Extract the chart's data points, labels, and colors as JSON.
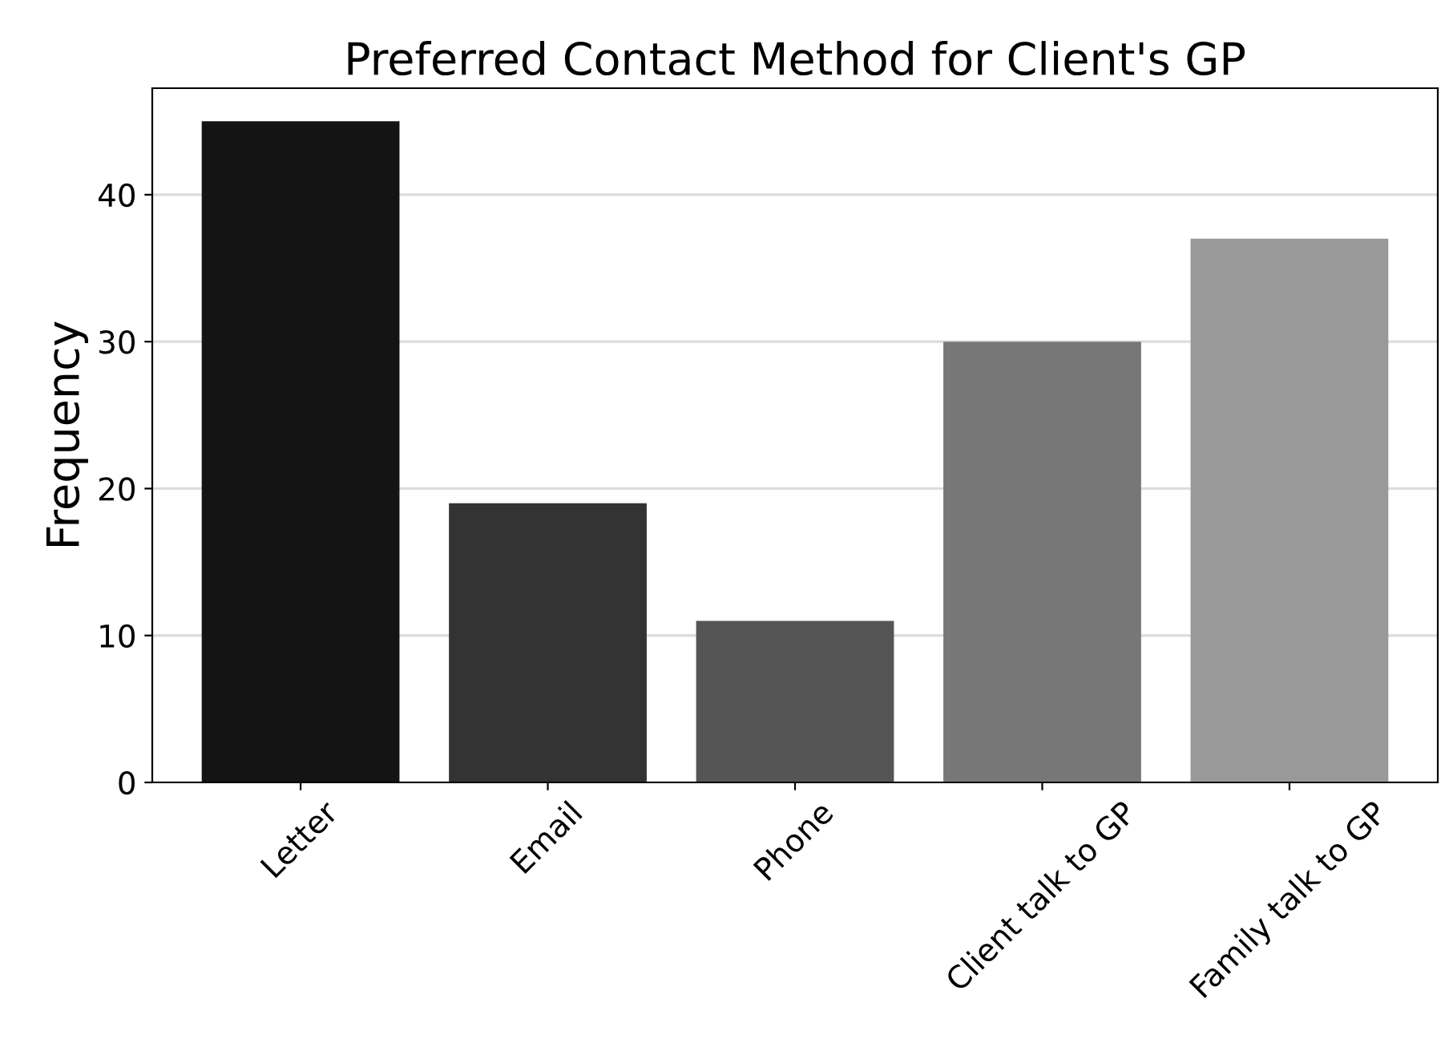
{
  "chart_data": {
    "type": "bar",
    "title": "Preferred Contact Method for Client's GP",
    "ylabel": "Frequency",
    "categories": [
      "Letter",
      "Email",
      "Phone",
      "Client talk to GP",
      "Family talk to GP"
    ],
    "values": [
      45,
      19,
      11,
      30,
      37
    ],
    "colors": [
      "#141414",
      "#333333",
      "#555555",
      "#777777",
      "#999999"
    ],
    "ylim": [
      0,
      47.25
    ],
    "yticks": [
      0,
      10,
      20,
      30,
      40
    ],
    "grid": "y"
  }
}
